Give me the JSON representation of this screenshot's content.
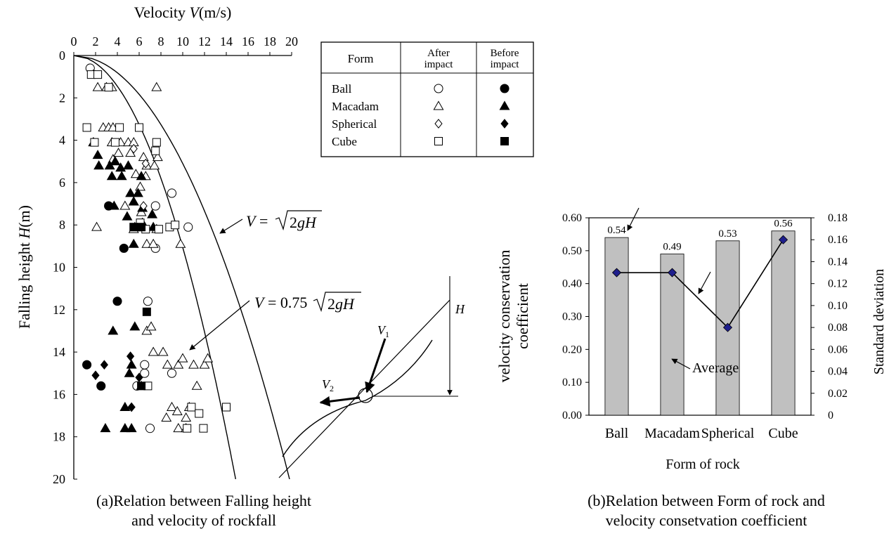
{
  "chart_data": [
    {
      "type": "scatter",
      "xlabel_prefix": "Velocity ",
      "xlabel_symbol": "V",
      "xlabel_unit": "(m/s)",
      "ylabel_prefix": "Falling height ",
      "ylabel_symbol": "H",
      "ylabel_unit": "(m)",
      "x_ticks": [
        "0",
        "2",
        "4",
        "6",
        "8",
        "10",
        "12",
        "14",
        "16",
        "18",
        "20"
      ],
      "y_ticks": [
        "0",
        "2",
        "4",
        "6",
        "8",
        "10",
        "12",
        "14",
        "16",
        "18",
        "20"
      ],
      "xlim": [
        0,
        20
      ],
      "ylim": [
        0,
        20
      ],
      "axis_orientation": "x on top, y increasing downward",
      "caption_lines": [
        "(a)Relation between Falling height",
        "and velocity of rockfall"
      ],
      "legend": {
        "header": [
          "Form",
          "After impact",
          "Before impact"
        ],
        "rows": [
          {
            "form": "Ball",
            "after": "○",
            "before": "●"
          },
          {
            "form": "Macadam",
            "after": "△",
            "before": "▲"
          },
          {
            "form": "Spherical",
            "after": "◇",
            "before": "◆"
          },
          {
            "form": "Cube",
            "after": "□",
            "before": "■"
          }
        ]
      },
      "curves": [
        {
          "label": "V = √(2gH)",
          "coef": 1.0
        },
        {
          "label": "V = 0.75√(2gH)",
          "coef": 0.75
        }
      ],
      "curve_label_parts": {
        "v": "V",
        "eq": " = ",
        "num": "0.75",
        "two": "2",
        "g": "g",
        "h": "H"
      },
      "inset": {
        "v1": "V",
        "v1_sub": "1",
        "v2": "V",
        "v2_sub": "2",
        "h": "H"
      },
      "series": [
        {
          "name": "Ball after impact",
          "marker": "circle",
          "filled": false,
          "points": [
            [
              1.5,
              0.6
            ],
            [
              9,
              6.5
            ],
            [
              7.5,
              7.1
            ],
            [
              10.5,
              8.1
            ],
            [
              7.5,
              9.1
            ],
            [
              6.8,
              11.6
            ],
            [
              6.5,
              15
            ],
            [
              9,
              15
            ],
            [
              5.8,
              15.6
            ],
            [
              6.5,
              14.6
            ],
            [
              7,
              17.6
            ]
          ]
        },
        {
          "name": "Ball before impact",
          "marker": "circle",
          "filled": true,
          "points": [
            [
              3.2,
              7.1
            ],
            [
              4.6,
              9.1
            ],
            [
              4,
              11.6
            ],
            [
              1.2,
              14.6
            ],
            [
              2.5,
              15.6
            ]
          ]
        },
        {
          "name": "Macadam after impact",
          "marker": "triangle",
          "filled": false,
          "points": [
            [
              1.8,
              0.9
            ],
            [
              2.2,
              1.5
            ],
            [
              3,
              1.5
            ],
            [
              3.5,
              1.5
            ],
            [
              7.6,
              1.5
            ],
            [
              1.8,
              4.1
            ],
            [
              2.7,
              3.4
            ],
            [
              3.2,
              3.4
            ],
            [
              3.6,
              3.4
            ],
            [
              3.5,
              4.1
            ],
            [
              4.3,
              4.1
            ],
            [
              5,
              4.1
            ],
            [
              5.5,
              4.1
            ],
            [
              3.6,
              4.9
            ],
            [
              4.1,
              4.6
            ],
            [
              5.2,
              4.6
            ],
            [
              6.4,
              4.8
            ],
            [
              7.7,
              4.8
            ],
            [
              6.7,
              5.2
            ],
            [
              7.4,
              5.2
            ],
            [
              5.7,
              5.6
            ],
            [
              6.1,
              6.2
            ],
            [
              6.6,
              5.7
            ],
            [
              5.5,
              6.9
            ],
            [
              4.7,
              7.1
            ],
            [
              6.2,
              7.4
            ],
            [
              6.3,
              7.9
            ],
            [
              5.5,
              8.2
            ],
            [
              7.6,
              8.2
            ],
            [
              2.1,
              8.1
            ],
            [
              6.7,
              8.9
            ],
            [
              7.3,
              8.9
            ],
            [
              9.8,
              8.9
            ],
            [
              6.7,
              13
            ],
            [
              7.1,
              12.8
            ],
            [
              7.3,
              14
            ],
            [
              8.2,
              14
            ],
            [
              8.6,
              14.6
            ],
            [
              9.6,
              14.6
            ],
            [
              10,
              14.3
            ],
            [
              11,
              14.6
            ],
            [
              12,
              14.6
            ],
            [
              12.3,
              14.3
            ],
            [
              11.3,
              15.6
            ],
            [
              9,
              16.6
            ],
            [
              9.5,
              16.8
            ],
            [
              8.5,
              17.1
            ],
            [
              10.3,
              17.1
            ],
            [
              10.6,
              16.6
            ],
            [
              9.6,
              17.6
            ],
            [
              10.3,
              17.6
            ]
          ]
        },
        {
          "name": "Macadam before impact",
          "marker": "triangle",
          "filled": true,
          "points": [
            [
              1.8,
              4.1
            ],
            [
              2.2,
              4.7
            ],
            [
              2.3,
              5.2
            ],
            [
              3.3,
              5.2
            ],
            [
              3.5,
              5.7
            ],
            [
              3.8,
              5
            ],
            [
              4.3,
              5.3
            ],
            [
              4.4,
              5.7
            ],
            [
              5,
              5.2
            ],
            [
              5.2,
              6.5
            ],
            [
              5.5,
              6.9
            ],
            [
              6.2,
              5.7
            ],
            [
              5.9,
              6.5
            ],
            [
              6.3,
              7.2
            ],
            [
              7.2,
              7.5
            ],
            [
              6.5,
              8.1
            ],
            [
              7.3,
              8.1
            ],
            [
              5.6,
              8.1
            ],
            [
              5.5,
              8.9
            ],
            [
              3.7,
              7.1
            ],
            [
              4.9,
              7.6
            ],
            [
              3.6,
              13
            ],
            [
              5.6,
              12.8
            ],
            [
              5.1,
              15
            ],
            [
              4.7,
              16.6
            ],
            [
              4.7,
              17.6
            ],
            [
              5.3,
              17.6
            ],
            [
              2.9,
              17.6
            ],
            [
              5.3,
              14.6
            ],
            [
              6.2,
              15.6
            ]
          ]
        },
        {
          "name": "Spherical after impact",
          "marker": "diamond",
          "filled": false,
          "points": [
            [
              6.6,
              5.1
            ],
            [
              5.5,
              4.4
            ],
            [
              6.4,
              7.1
            ]
          ]
        },
        {
          "name": "Spherical before impact",
          "marker": "diamond",
          "filled": true,
          "points": [
            [
              2,
              15.1
            ],
            [
              2.8,
              14.6
            ],
            [
              5.2,
              14.2
            ],
            [
              5.3,
              16.6
            ],
            [
              6,
              15.2
            ]
          ]
        },
        {
          "name": "Cube after impact",
          "marker": "square",
          "filled": false,
          "points": [
            [
              1.6,
              0.9
            ],
            [
              2.2,
              0.9
            ],
            [
              3.2,
              1.5
            ],
            [
              1.2,
              3.4
            ],
            [
              1.9,
              4.1
            ],
            [
              4.2,
              3.4
            ],
            [
              6,
              3.4
            ],
            [
              7.6,
              4.1
            ],
            [
              7.5,
              4.5
            ],
            [
              3.8,
              4.1
            ],
            [
              6.1,
              7.9
            ],
            [
              6.6,
              8.2
            ],
            [
              7.8,
              8.2
            ],
            [
              8.8,
              8.1
            ],
            [
              9.3,
              8
            ],
            [
              6.8,
              15.6
            ],
            [
              10.8,
              16.6
            ],
            [
              11.5,
              16.9
            ],
            [
              11.9,
              17.6
            ],
            [
              10.4,
              17.6
            ],
            [
              14,
              16.6
            ]
          ]
        },
        {
          "name": "Cube before impact",
          "marker": "square",
          "filled": true,
          "points": [
            [
              6.7,
              12.1
            ],
            [
              6.2,
              15.6
            ],
            [
              5.5,
              8.1
            ],
            [
              6.2,
              8.1
            ]
          ]
        }
      ]
    },
    {
      "type": "bar",
      "categories": [
        "Ball",
        "Macadam",
        "Spherical",
        "Cube"
      ],
      "values": [
        0.54,
        0.49,
        0.53,
        0.56
      ],
      "value_labels": [
        "0.54",
        "0.49",
        "0.53",
        "0.56"
      ],
      "ylim": [
        0,
        0.6
      ],
      "y_ticks": [
        "0.00",
        "0.10",
        "0.20",
        "0.30",
        "0.40",
        "0.50",
        "0.60"
      ],
      "ylabel_lines": [
        "velocity conservation",
        "coefficient"
      ],
      "y2lim": [
        0,
        0.18
      ],
      "y2_ticks": [
        "0",
        "0.02",
        "0.04",
        "0.06",
        "0.08",
        "0.10",
        "0.12",
        "0.14",
        "0.16",
        "0.18"
      ],
      "y2label": "Standard deviation",
      "xlabel": "Form of rock",
      "line_series": {
        "values": [
          0.13,
          0.13,
          0.08,
          0.16
        ],
        "marker": "diamond",
        "marker_color": "#1e1e8c"
      },
      "annotation": "Average",
      "caption_lines": [
        "(b)Relation between Form of rock and",
        "velocity consetvation coefficient"
      ],
      "colors": {
        "bar": "#c0c0c0"
      }
    }
  ]
}
